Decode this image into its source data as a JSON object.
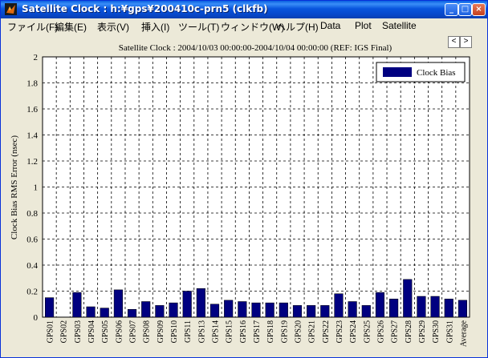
{
  "window": {
    "title": "Satellite Clock : h:¥gps¥200410c-prn5 (clkfb)",
    "minimize": "_",
    "maximize": "□",
    "close": "×"
  },
  "menu": [
    {
      "label": "ファイル(F)"
    },
    {
      "label": "編集(E)"
    },
    {
      "label": "表示(V)"
    },
    {
      "label": "挿入(I)"
    },
    {
      "label": "ツール(T)"
    },
    {
      "label": "ウィンドウ(W)"
    },
    {
      "label": "ヘルプ(H)"
    },
    {
      "label": "Data"
    },
    {
      "label": "Plot"
    },
    {
      "label": "Satellite"
    }
  ],
  "nav": {
    "prev": "<",
    "next": ">"
  },
  "colors": {
    "bar": "#000080",
    "grid": "#000000"
  },
  "chart_data": {
    "type": "bar",
    "title": "Satellite Clock : 2004/10/03 00:00:00-2004/10/04 00:00:00 (REF: IGS Final)",
    "xlabel": "",
    "ylabel": "Clock Bias RMS Error (nsec)",
    "ylim": [
      0,
      2
    ],
    "yticks": [
      "0",
      "0.2",
      "0.4",
      "0.6",
      "0.8",
      "1",
      "1.2",
      "1.4",
      "1.6",
      "1.8",
      "2"
    ],
    "grid": true,
    "legend_position": "top-right",
    "categories": [
      "GPS01",
      "GPS02",
      "GPS03",
      "GPS04",
      "GPS05",
      "GPS06",
      "GPS07",
      "GPS08",
      "GPS09",
      "GPS10",
      "GPS11",
      "GPS13",
      "GPS14",
      "GPS15",
      "GPS16",
      "GPS17",
      "GPS18",
      "GPS19",
      "GPS20",
      "GPS21",
      "GPS22",
      "GPS23",
      "GPS24",
      "GPS25",
      "GPS26",
      "GPS27",
      "GPS28",
      "GPS29",
      "GPS30",
      "GPS31",
      "Average"
    ],
    "series": [
      {
        "name": "Clock Bias",
        "values": [
          0.15,
          0,
          0.19,
          0.08,
          0.07,
          0.21,
          0.06,
          0.12,
          0.09,
          0.11,
          0.2,
          0.22,
          0.1,
          0.13,
          0.12,
          0.11,
          0.11,
          0.11,
          0.09,
          0.09,
          0.09,
          0.18,
          0.12,
          0.09,
          0.19,
          0.14,
          0.29,
          0.16,
          0.16,
          0.14,
          0.13
        ]
      }
    ]
  }
}
